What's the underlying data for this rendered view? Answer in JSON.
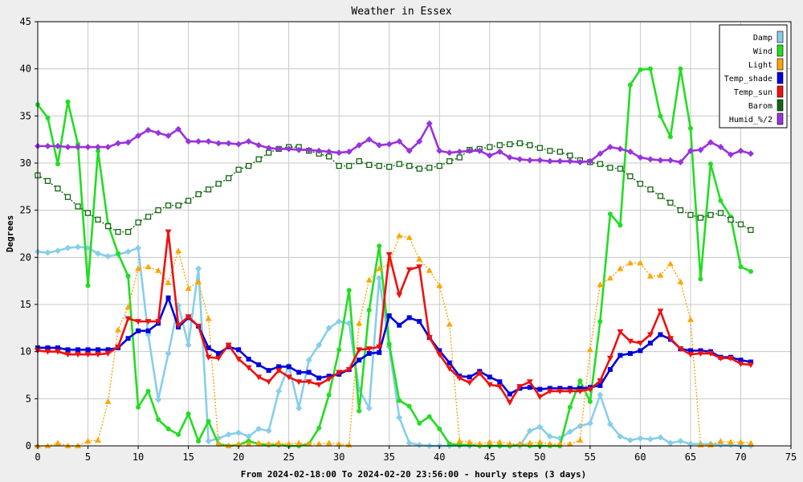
{
  "chart_data": {
    "type": "line",
    "title": "Weather in Essex",
    "xlabel": "From 2024-02-18:00 To 2024-02-20 23:56:00 - hourly steps (3 days)",
    "ylabel": "Degrees",
    "xlim": [
      0,
      75
    ],
    "ylim": [
      0,
      45
    ],
    "x_ticks": [
      0,
      5,
      10,
      15,
      20,
      25,
      30,
      35,
      40,
      45,
      50,
      55,
      60,
      65,
      70,
      75
    ],
    "y_ticks": [
      0,
      5,
      10,
      15,
      20,
      25,
      30,
      35,
      40,
      45
    ],
    "grid": true,
    "legend_position": "top-right",
    "series": [
      {
        "name": "Damp",
        "color": "#87ceeb",
        "marker": "diamond",
        "dash": "solid",
        "values": [
          20.6,
          20.5,
          20.7,
          21.0,
          21.1,
          21.0,
          20.4,
          20.1,
          20.3,
          20.6,
          21.0,
          11.8,
          4.9,
          9.8,
          14.9,
          10.7,
          18.8,
          0.5,
          0.8,
          1.2,
          1.4,
          1.0,
          1.8,
          1.6,
          5.8,
          8.5,
          4.0,
          9.1,
          10.7,
          12.5,
          13.2,
          13.0,
          6.0,
          4.0,
          17.8,
          10.5,
          3.0,
          0.3,
          0.1,
          0.0,
          0.0,
          0.0,
          0.0,
          0.0,
          0.0,
          0.0,
          0.0,
          0.0,
          0.0,
          1.6,
          2.0,
          1.0,
          0.8,
          1.5,
          2.1,
          2.4,
          5.4,
          2.3,
          1.0,
          0.6,
          0.8,
          0.7,
          0.9,
          0.3,
          0.5,
          0.2,
          0.2,
          0.2,
          0.1,
          0.1,
          0.0,
          0.0
        ]
      },
      {
        "name": "Wind",
        "color": "#22dd22",
        "marker": "circle",
        "dash": "solid",
        "values": [
          36.2,
          34.8,
          29.9,
          36.5,
          32.0,
          17.0,
          31.3,
          23.5,
          20.4,
          18.0,
          4.1,
          5.8,
          2.8,
          1.8,
          1.2,
          3.4,
          0.5,
          2.6,
          0.2,
          0.0,
          0.1,
          0.5,
          0.2,
          0.1,
          0.1,
          0.0,
          0.0,
          0.2,
          1.9,
          5.4,
          10.2,
          16.5,
          3.7,
          14.4,
          21.2,
          10.8,
          4.8,
          4.2,
          2.4,
          3.1,
          1.8,
          0.2,
          0.1,
          0.1,
          0.0,
          0.0,
          0.0,
          0.0,
          0.1,
          0.0,
          0.0,
          0.0,
          0.0,
          4.1,
          6.9,
          4.7,
          13.2,
          24.6,
          23.4,
          38.3,
          39.9,
          40.0,
          35.0,
          32.8,
          40.0,
          33.7,
          17.7,
          29.9,
          26.0,
          24.3,
          19.0,
          18.5
        ]
      },
      {
        "name": "Light",
        "color": "#ffa500",
        "marker": "triangle-up",
        "dash": "dotted",
        "values": [
          0.0,
          0.0,
          0.3,
          0.0,
          0.0,
          0.5,
          0.6,
          4.7,
          12.3,
          14.7,
          18.8,
          19.0,
          18.6,
          17.3,
          20.7,
          16.7,
          17.4,
          13.5,
          0.2,
          0.0,
          0.2,
          0.2,
          0.3,
          0.2,
          0.3,
          0.2,
          0.3,
          0.2,
          0.2,
          0.3,
          0.2,
          0.1,
          13.0,
          17.6,
          18.8,
          19.3,
          22.3,
          22.1,
          19.8,
          18.6,
          17.0,
          12.9,
          0.5,
          0.4,
          0.2,
          0.4,
          0.4,
          0.2,
          0.2,
          0.3,
          0.4,
          0.2,
          0.2,
          0.2,
          0.6,
          10.2,
          17.1,
          17.8,
          18.8,
          19.4,
          19.4,
          18.0,
          18.1,
          19.3,
          17.4,
          13.4,
          0.1,
          0.1,
          0.5,
          0.4,
          0.4,
          0.3
        ]
      },
      {
        "name": "Temp_shade",
        "color": "#0000dd",
        "marker": "square",
        "dash": "solid",
        "values": [
          10.4,
          10.4,
          10.4,
          10.2,
          10.2,
          10.2,
          10.2,
          10.2,
          10.4,
          11.4,
          12.2,
          12.2,
          13.0,
          15.7,
          12.6,
          13.6,
          12.7,
          10.4,
          9.8,
          10.5,
          10.2,
          9.2,
          8.6,
          8.0,
          8.4,
          8.4,
          7.8,
          7.8,
          7.2,
          7.4,
          7.6,
          8.1,
          9.1,
          9.8,
          9.9,
          13.8,
          12.8,
          13.6,
          13.2,
          11.5,
          10.1,
          8.8,
          7.4,
          7.3,
          7.9,
          7.3,
          6.8,
          5.5,
          6.1,
          6.2,
          6.0,
          6.1,
          6.1,
          6.1,
          6.1,
          6.2,
          6.4,
          8.1,
          9.6,
          9.8,
          10.1,
          10.9,
          11.8,
          11.3,
          10.3,
          10.1,
          10.1,
          10.0,
          9.4,
          9.4,
          9.1,
          8.9
        ]
      },
      {
        "name": "Temp_sun",
        "color": "#ee1111",
        "marker": "triangle-down",
        "dash": "solid",
        "values": [
          10.1,
          10.0,
          10.0,
          9.7,
          9.7,
          9.7,
          9.7,
          9.8,
          10.5,
          13.5,
          13.2,
          13.2,
          13.2,
          22.7,
          12.8,
          13.7,
          12.7,
          9.4,
          9.3,
          10.7,
          9.2,
          8.3,
          7.3,
          6.8,
          8.0,
          7.3,
          6.8,
          6.8,
          6.5,
          7.1,
          7.8,
          8.1,
          10.2,
          10.3,
          10.5,
          20.3,
          16.0,
          18.7,
          19.0,
          11.5,
          9.7,
          8.2,
          7.2,
          6.7,
          7.7,
          6.5,
          6.3,
          4.6,
          6.3,
          6.8,
          5.2,
          5.8,
          5.8,
          5.8,
          5.8,
          6.0,
          6.9,
          9.3,
          12.1,
          11.1,
          10.9,
          11.8,
          14.3,
          11.4,
          10.3,
          9.7,
          9.8,
          9.8,
          9.3,
          9.3,
          8.7,
          8.6
        ]
      },
      {
        "name": "Barom",
        "color": "#116611",
        "marker": "open-square",
        "dash": "dotted",
        "values": [
          28.7,
          28.1,
          27.3,
          26.4,
          25.4,
          24.7,
          24.0,
          23.3,
          22.7,
          22.7,
          23.7,
          24.3,
          25.0,
          25.5,
          25.5,
          26.0,
          26.7,
          27.2,
          27.8,
          28.4,
          29.3,
          29.7,
          30.4,
          31.1,
          31.5,
          31.7,
          31.7,
          31.3,
          31.0,
          30.7,
          29.7,
          29.7,
          30.2,
          29.8,
          29.7,
          29.6,
          29.9,
          29.7,
          29.4,
          29.5,
          29.7,
          30.2,
          30.6,
          31.4,
          31.5,
          31.7,
          31.9,
          32.0,
          32.1,
          31.9,
          31.6,
          31.3,
          31.2,
          30.8,
          30.3,
          30.1,
          29.9,
          29.5,
          29.4,
          28.6,
          27.8,
          27.2,
          26.5,
          25.8,
          25.0,
          24.5,
          24.2,
          24.5,
          24.7,
          24.0,
          23.5,
          22.9
        ]
      },
      {
        "name": "Humid_%/2",
        "color": "#9933dd",
        "marker": "diamond",
        "dash": "solid",
        "values": [
          31.8,
          31.8,
          31.8,
          31.7,
          31.7,
          31.7,
          31.7,
          31.7,
          32.1,
          32.2,
          32.9,
          33.5,
          33.2,
          32.9,
          33.6,
          32.3,
          32.3,
          32.3,
          32.1,
          32.1,
          32.0,
          32.3,
          31.9,
          31.6,
          31.5,
          31.5,
          31.4,
          31.4,
          31.3,
          31.2,
          31.1,
          31.2,
          31.9,
          32.5,
          31.9,
          32.0,
          32.3,
          31.3,
          32.3,
          34.2,
          31.3,
          31.1,
          31.2,
          31.3,
          31.3,
          30.8,
          31.2,
          30.6,
          30.4,
          30.3,
          30.3,
          30.2,
          30.2,
          30.2,
          30.1,
          30.2,
          31.0,
          31.7,
          31.5,
          31.2,
          30.6,
          30.4,
          30.3,
          30.3,
          30.1,
          31.3,
          31.4,
          32.2,
          31.7,
          30.9,
          31.3,
          31.0
        ]
      }
    ]
  }
}
